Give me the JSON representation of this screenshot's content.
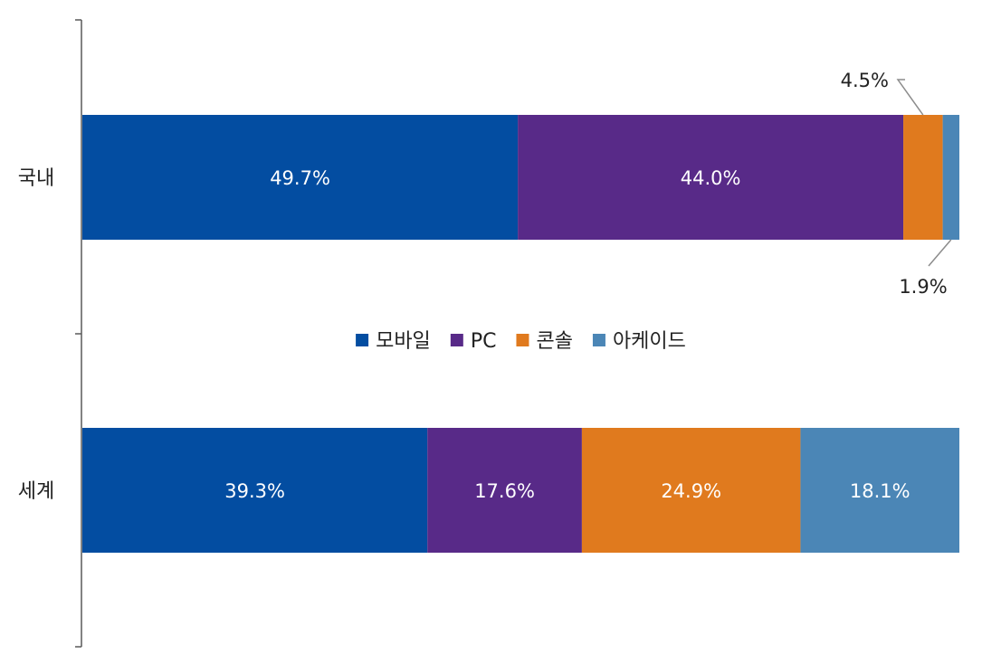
{
  "chart_data": {
    "type": "bar",
    "orientation": "horizontal",
    "stacked": "100%",
    "categories": [
      "국내",
      "세계"
    ],
    "series": [
      {
        "name": "모바일",
        "color": "#034DA1",
        "values": [
          49.7,
          39.3
        ],
        "labels": [
          "49.7%",
          "39.3%"
        ]
      },
      {
        "name": "PC",
        "color": "#582A88",
        "values": [
          44.0,
          17.6
        ],
        "labels": [
          "44.0%",
          "17.6%"
        ]
      },
      {
        "name": "콘솔",
        "color": "#E07A1E",
        "values": [
          4.5,
          24.9
        ],
        "labels": [
          "4.5%",
          "24.9%"
        ]
      },
      {
        "name": "아케이드",
        "color": "#4B86B6",
        "values": [
          1.9,
          18.1
        ],
        "labels": [
          "1.9%",
          "18.1%"
        ]
      }
    ],
    "legend_position": "center",
    "grid": false
  }
}
